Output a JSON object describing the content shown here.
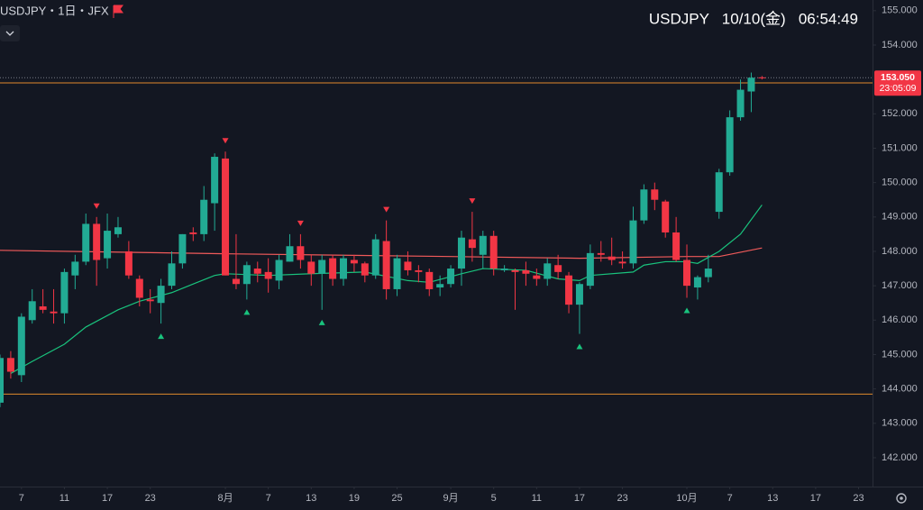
{
  "chart_data": {
    "type": "candlestick",
    "title": "USDJPY・1日・JFX",
    "subtitle": "USDJPY   10/10(金)   06:54:49",
    "up_color": "#22ab94",
    "down_color": "#f23645",
    "open": [
      143.6,
      144.9,
      144.4,
      146.0,
      146.4,
      146.25,
      146.2,
      147.3,
      147.7,
      148.8,
      147.8,
      148.5,
      148.0,
      147.2,
      146.6,
      146.5,
      147.0,
      147.65,
      148.55,
      148.5,
      149.4,
      150.7,
      147.2,
      147.05,
      147.5,
      147.4,
      147.15,
      147.7,
      148.15,
      147.7,
      147.35,
      147.8,
      147.2,
      147.75,
      147.65,
      147.3,
      148.3,
      146.9,
      147.7,
      147.45,
      147.4,
      146.95,
      147.05,
      147.5,
      148.35,
      147.9,
      148.45,
      147.45,
      147.45,
      147.45,
      147.3,
      147.2,
      147.6,
      147.3,
      146.45,
      147.0,
      147.95,
      147.85,
      147.7,
      147.65,
      148.9,
      149.8,
      149.45,
      148.55,
      147.75,
      146.95,
      147.25,
      149.15,
      150.3,
      151.9,
      152.65,
      153.06
    ],
    "high": [
      145.0,
      145.1,
      146.2,
      146.9,
      146.9,
      146.9,
      147.5,
      147.9,
      149.1,
      149.0,
      149.1,
      149.0,
      148.3,
      147.3,
      146.9,
      147.2,
      148.0,
      148.5,
      148.7,
      149.9,
      150.85,
      150.9,
      148.5,
      147.7,
      147.7,
      147.8,
      147.9,
      148.5,
      148.5,
      147.9,
      147.9,
      147.9,
      147.9,
      147.9,
      147.7,
      148.5,
      148.9,
      147.9,
      148.0,
      147.6,
      147.5,
      147.3,
      147.6,
      148.6,
      149.15,
      148.6,
      148.6,
      147.6,
      147.5,
      147.7,
      147.5,
      147.8,
      147.9,
      147.4,
      147.1,
      148.2,
      148.3,
      148.4,
      148.0,
      149.3,
      149.95,
      150.0,
      149.5,
      149.0,
      148.2,
      147.3,
      147.9,
      150.4,
      152.1,
      153.0,
      153.2,
      153.1
    ],
    "low": [
      143.47,
      144.3,
      144.2,
      145.9,
      146.2,
      145.9,
      145.9,
      146.9,
      147.6,
      147.0,
      147.5,
      148.4,
      147.2,
      146.4,
      146.2,
      145.9,
      146.9,
      147.5,
      148.3,
      148.3,
      148.6,
      147.3,
      146.9,
      146.6,
      147.1,
      146.8,
      146.9,
      147.7,
      147.5,
      147.0,
      146.3,
      147.0,
      147.0,
      147.4,
      147.1,
      147.2,
      146.6,
      146.7,
      147.3,
      147.1,
      146.7,
      146.7,
      146.95,
      147.0,
      147.7,
      147.5,
      147.3,
      147.4,
      146.3,
      147.0,
      147.0,
      147.0,
      147.2,
      146.2,
      145.6,
      146.9,
      147.7,
      147.6,
      147.5,
      147.5,
      148.8,
      149.2,
      148.4,
      147.7,
      146.65,
      146.6,
      147.1,
      148.95,
      150.2,
      151.8,
      152.05,
      153.0
    ],
    "close": [
      144.9,
      144.5,
      146.1,
      146.55,
      146.3,
      146.2,
      147.4,
      147.7,
      148.8,
      147.75,
      148.6,
      148.7,
      147.3,
      146.65,
      146.55,
      147.0,
      147.65,
      148.5,
      148.5,
      149.5,
      150.75,
      147.3,
      147.05,
      147.6,
      147.35,
      147.2,
      147.75,
      148.15,
      147.75,
      147.35,
      147.75,
      147.2,
      147.8,
      147.65,
      147.3,
      148.35,
      146.9,
      147.8,
      147.45,
      147.4,
      146.9,
      147.05,
      147.5,
      148.4,
      148.1,
      148.45,
      147.5,
      147.5,
      147.4,
      147.35,
      147.2,
      147.65,
      147.4,
      146.45,
      147.05,
      147.95,
      147.9,
      147.75,
      147.65,
      148.9,
      149.8,
      149.5,
      148.55,
      147.75,
      147.0,
      147.25,
      147.5,
      150.3,
      151.9,
      152.7,
      153.05,
      153.05
    ],
    "ma_lines": [
      {
        "color": "#f05a5a",
        "x": [
          0,
          21,
          42,
          54,
          64,
          67,
          71
        ],
        "values": [
          148.03,
          147.93,
          147.85,
          147.8,
          147.85,
          147.85,
          148.1
        ]
      },
      {
        "color": "#19c37d",
        "x": [
          1,
          3,
          6,
          8,
          11,
          13,
          16,
          18,
          20,
          21,
          25,
          29,
          34,
          38,
          40,
          43,
          45,
          49,
          52,
          54,
          55,
          59,
          60,
          62,
          64,
          65,
          67,
          69,
          71
        ],
        "values": [
          144.45,
          144.8,
          145.3,
          145.8,
          146.3,
          146.55,
          146.8,
          147.05,
          147.3,
          147.35,
          147.3,
          147.35,
          147.4,
          147.15,
          147.1,
          147.35,
          147.5,
          147.45,
          147.2,
          147.15,
          147.3,
          147.4,
          147.6,
          147.7,
          147.7,
          147.65,
          148.0,
          148.5,
          149.35
        ]
      }
    ],
    "sell_signals": [
      9,
      21,
      28,
      36,
      44
    ],
    "buy_signals": [
      15,
      23,
      30,
      54,
      64
    ],
    "hlines": [
      {
        "value": 152.9,
        "color": "#e08a2c"
      },
      {
        "value": 143.85,
        "color": "#e08a2c"
      }
    ],
    "last_price": {
      "value": 153.05,
      "label": "153.050"
    },
    "countdown": "23:05:09",
    "ylim": [
      141.16,
      155.31
    ],
    "yticks": [
      {
        "value": 142,
        "label": "142.000"
      },
      {
        "value": 143,
        "label": "143.000"
      },
      {
        "value": 144,
        "label": "144.000"
      },
      {
        "value": 145,
        "label": "145.000"
      },
      {
        "value": 146,
        "label": "146.000"
      },
      {
        "value": 147,
        "label": "147.000"
      },
      {
        "value": 148,
        "label": "148.000"
      },
      {
        "value": 149,
        "label": "149.000"
      },
      {
        "value": 150,
        "label": "150.000"
      },
      {
        "value": 151,
        "label": "151.000"
      },
      {
        "value": 152,
        "label": "152.000"
      },
      {
        "value": 154,
        "label": "154.000"
      },
      {
        "value": 155,
        "label": "155.000"
      }
    ],
    "xlim": [
      0,
      81.3
    ],
    "xticks": [
      {
        "value": 2,
        "label": "7"
      },
      {
        "value": 6,
        "label": "11"
      },
      {
        "value": 10,
        "label": "17"
      },
      {
        "value": 14,
        "label": "23"
      },
      {
        "value": 21,
        "label": "8月"
      },
      {
        "value": 25,
        "label": "7"
      },
      {
        "value": 29,
        "label": "13"
      },
      {
        "value": 33,
        "label": "19"
      },
      {
        "value": 37,
        "label": "25"
      },
      {
        "value": 42,
        "label": "9月"
      },
      {
        "value": 46,
        "label": "5"
      },
      {
        "value": 50,
        "label": "11"
      },
      {
        "value": 54,
        "label": "17"
      },
      {
        "value": 58,
        "label": "23"
      },
      {
        "value": 64,
        "label": "10月"
      },
      {
        "value": 68,
        "label": "7"
      },
      {
        "value": 72,
        "label": "13"
      },
      {
        "value": 76,
        "label": "17"
      },
      {
        "value": 80,
        "label": "23"
      }
    ]
  }
}
